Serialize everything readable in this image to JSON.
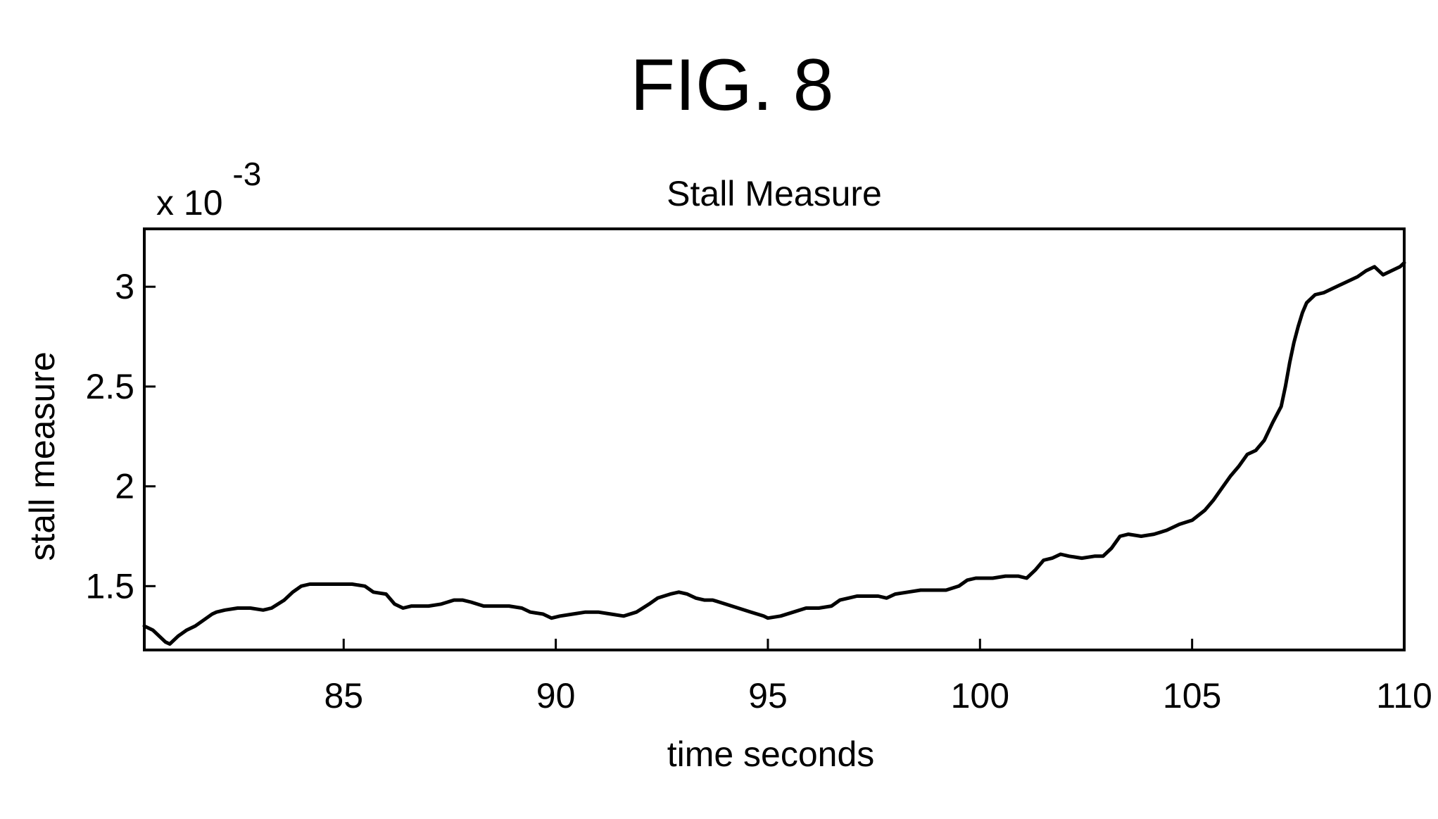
{
  "figure": {
    "label": "FIG. 8"
  },
  "chart_data": {
    "type": "line",
    "title": "Stall Measure",
    "xlabel": "time seconds",
    "ylabel": "stall measure",
    "y_multiplier_label": "x 10",
    "y_multiplier_exponent": "-3",
    "xlim": [
      80.3,
      110
    ],
    "ylim": [
      1.18,
      3.29
    ],
    "x_ticks": [
      85,
      90,
      95,
      100,
      105,
      110
    ],
    "x_tick_labels": [
      "85",
      "90",
      "95",
      "100",
      "105",
      "110"
    ],
    "y_ticks": [
      1.5,
      2,
      2.5,
      3
    ],
    "y_tick_labels": [
      "1.5",
      "2",
      "2.5",
      "3"
    ],
    "grid": false,
    "series": [
      {
        "color": "#000000",
        "x": [
          80.3,
          80.5,
          80.8,
          80.9,
          81.1,
          81.3,
          81.5,
          81.7,
          81.9,
          82.0,
          82.2,
          82.5,
          82.8,
          83.1,
          83.3,
          83.6,
          83.8,
          84.0,
          84.2,
          84.4,
          84.6,
          84.9,
          85.2,
          85.5,
          85.7,
          86.0,
          86.2,
          86.4,
          86.6,
          86.8,
          87.0,
          87.3,
          87.6,
          87.8,
          88.0,
          88.3,
          88.6,
          88.9,
          89.2,
          89.4,
          89.7,
          89.9,
          90.1,
          90.4,
          90.7,
          91.0,
          91.3,
          91.6,
          91.9,
          92.2,
          92.4,
          92.7,
          92.9,
          93.1,
          93.3,
          93.5,
          93.7,
          94.0,
          94.3,
          94.6,
          94.9,
          95.0,
          95.3,
          95.6,
          95.9,
          96.2,
          96.5,
          96.7,
          96.9,
          97.1,
          97.3,
          97.6,
          97.8,
          98.0,
          98.3,
          98.6,
          98.9,
          99.2,
          99.5,
          99.7,
          99.9,
          100.0,
          100.3,
          100.6,
          100.9,
          101.1,
          101.3,
          101.5,
          101.7,
          101.9,
          102.1,
          102.4,
          102.7,
          102.9,
          103.1,
          103.3,
          103.5,
          103.8,
          104.1,
          104.4,
          104.7,
          105.0,
          105.3,
          105.5,
          105.7,
          105.9,
          106.1,
          106.3,
          106.5,
          106.7,
          106.9,
          107.1,
          107.2,
          107.3,
          107.4,
          107.5,
          107.6,
          107.7,
          107.8,
          107.9,
          108.1,
          108.3,
          108.6,
          108.9,
          109.1,
          109.3,
          109.5,
          109.7,
          109.9,
          110.0
        ],
        "values": [
          1.3,
          1.28,
          1.22,
          1.21,
          1.25,
          1.28,
          1.3,
          1.33,
          1.36,
          1.37,
          1.38,
          1.39,
          1.39,
          1.38,
          1.39,
          1.43,
          1.47,
          1.5,
          1.51,
          1.51,
          1.51,
          1.51,
          1.51,
          1.5,
          1.47,
          1.46,
          1.41,
          1.39,
          1.4,
          1.4,
          1.4,
          1.41,
          1.43,
          1.43,
          1.42,
          1.4,
          1.4,
          1.4,
          1.39,
          1.37,
          1.36,
          1.34,
          1.35,
          1.36,
          1.37,
          1.37,
          1.36,
          1.35,
          1.37,
          1.41,
          1.44,
          1.46,
          1.47,
          1.46,
          1.44,
          1.43,
          1.43,
          1.41,
          1.39,
          1.37,
          1.35,
          1.34,
          1.35,
          1.37,
          1.39,
          1.39,
          1.4,
          1.43,
          1.44,
          1.45,
          1.45,
          1.45,
          1.44,
          1.46,
          1.47,
          1.48,
          1.48,
          1.48,
          1.5,
          1.53,
          1.54,
          1.54,
          1.54,
          1.55,
          1.55,
          1.54,
          1.58,
          1.63,
          1.64,
          1.66,
          1.65,
          1.64,
          1.65,
          1.65,
          1.69,
          1.75,
          1.76,
          1.75,
          1.76,
          1.78,
          1.81,
          1.83,
          1.88,
          1.93,
          1.99,
          2.05,
          2.1,
          2.16,
          2.18,
          2.23,
          2.32,
          2.4,
          2.5,
          2.62,
          2.72,
          2.8,
          2.87,
          2.92,
          2.94,
          2.96,
          2.97,
          2.99,
          3.02,
          3.05,
          3.08,
          3.1,
          3.06,
          3.08,
          3.1,
          3.12
        ]
      }
    ]
  }
}
